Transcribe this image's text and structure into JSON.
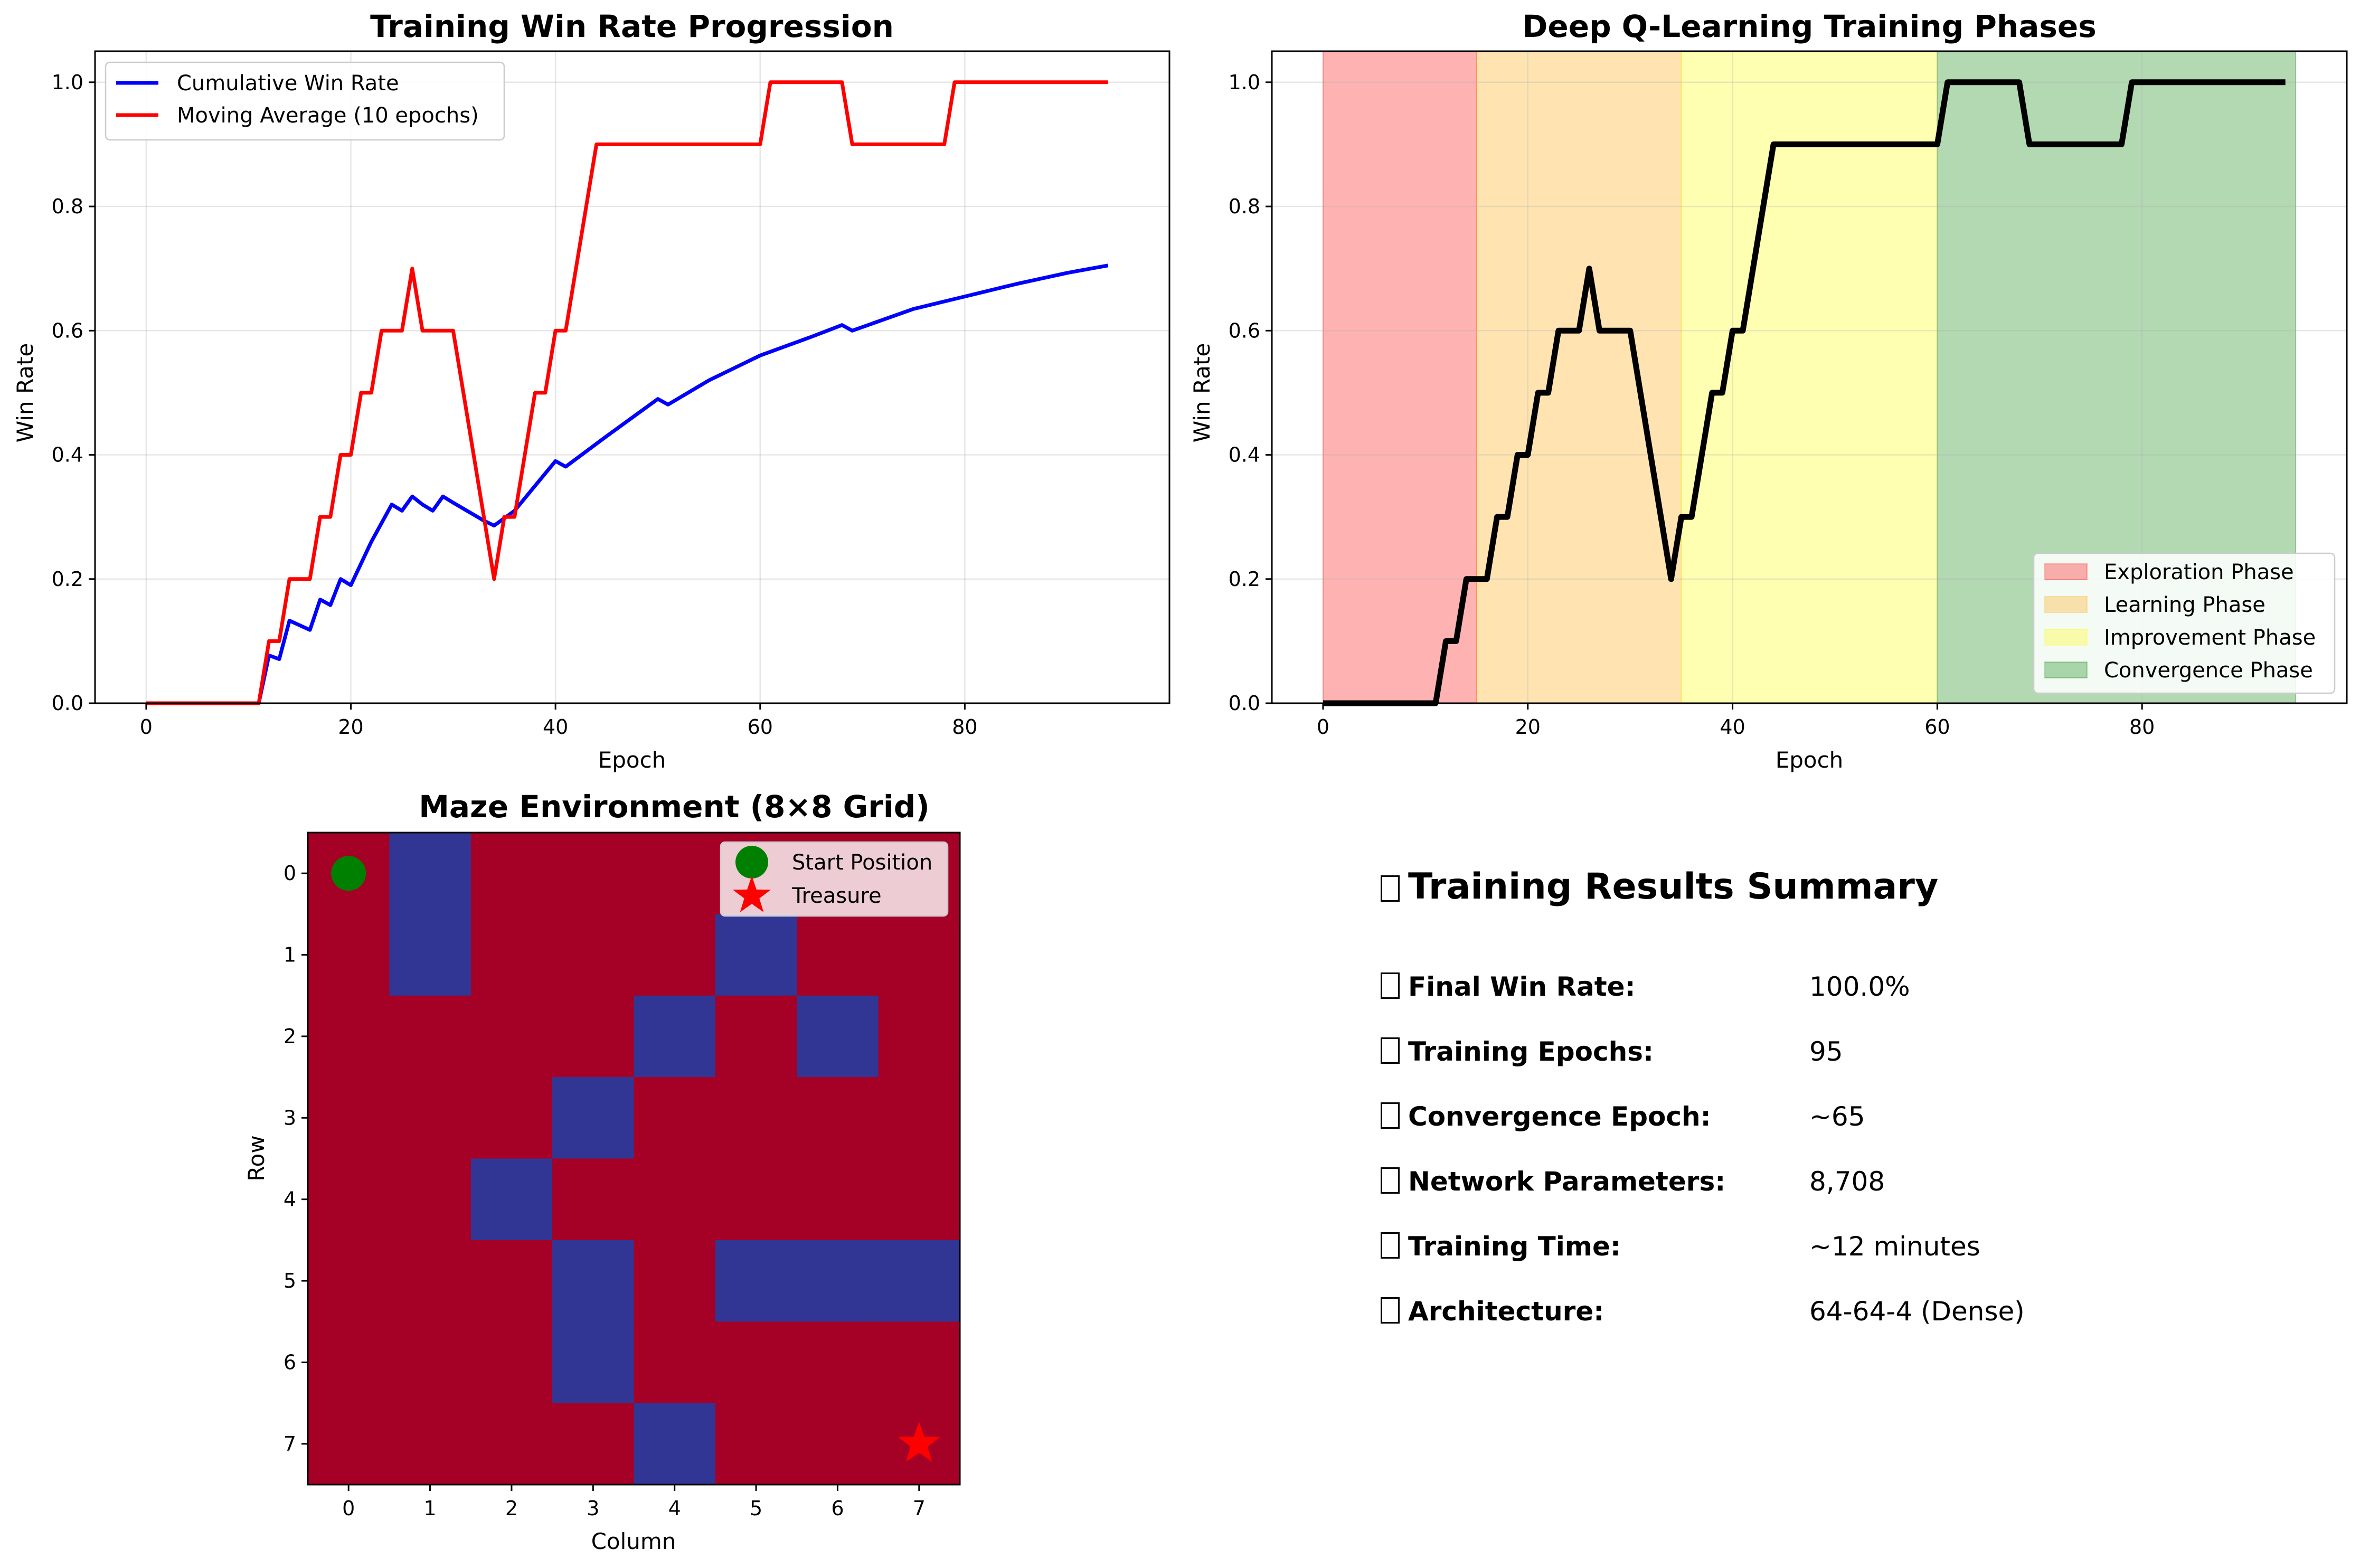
{
  "chart_data": [
    {
      "type": "line",
      "title": "Training Win Rate Progression",
      "xlabel": "Epoch",
      "ylabel": "Win Rate",
      "xlim": [
        -5,
        100
      ],
      "ylim": [
        0,
        1.05
      ],
      "xticks": [
        0,
        20,
        40,
        60,
        80
      ],
      "yticks": [
        0.0,
        0.2,
        0.4,
        0.6,
        0.8,
        1.0
      ],
      "tick_labels_x": [
        "0",
        "20",
        "40",
        "60",
        "80"
      ],
      "tick_labels_y": [
        "0.0",
        "0.2",
        "0.4",
        "0.6",
        "0.8",
        "1.0"
      ],
      "grid": true,
      "legend": "upper-left",
      "series": [
        {
          "name": "Cumulative Win Rate",
          "color": "#0000ff",
          "x": [
            0,
            11,
            12,
            13,
            14,
            16,
            17,
            18,
            19,
            20,
            22,
            24,
            25,
            26,
            27,
            28,
            29,
            30,
            33,
            34,
            36,
            40,
            41,
            45,
            50,
            51,
            55,
            60,
            65,
            68,
            69,
            75,
            80,
            85,
            90,
            94
          ],
          "y": [
            0,
            0,
            0.077,
            0.071,
            0.133,
            0.118,
            0.167,
            0.158,
            0.2,
            0.19,
            0.26,
            0.32,
            0.31,
            0.333,
            0.32,
            0.31,
            0.333,
            0.323,
            0.294,
            0.286,
            0.31,
            0.39,
            0.381,
            0.43,
            0.49,
            0.481,
            0.52,
            0.56,
            0.59,
            0.609,
            0.6,
            0.635,
            0.655,
            0.675,
            0.693,
            0.705
          ]
        },
        {
          "name": "Moving Average (10 epochs)",
          "color": "#ff0000",
          "x": [
            0,
            11,
            12,
            13,
            14,
            15,
            16,
            17,
            18,
            19,
            20,
            21,
            22,
            23,
            24,
            25,
            26,
            27,
            28,
            29,
            30,
            34,
            35,
            36,
            37,
            38,
            39,
            40,
            41,
            44,
            45,
            60,
            61,
            62,
            67,
            68,
            69,
            70,
            77,
            78,
            79,
            94
          ],
          "y": [
            0,
            0,
            0.1,
            0.1,
            0.2,
            0.2,
            0.2,
            0.3,
            0.3,
            0.4,
            0.4,
            0.5,
            0.5,
            0.6,
            0.6,
            0.6,
            0.7,
            0.6,
            0.6,
            0.6,
            0.6,
            0.2,
            0.3,
            0.3,
            0.4,
            0.5,
            0.5,
            0.6,
            0.6,
            0.9,
            0.9,
            0.9,
            1.0,
            1.0,
            1.0,
            1.0,
            0.9,
            0.9,
            0.9,
            0.9,
            1.0,
            1.0
          ]
        }
      ]
    },
    {
      "type": "line",
      "title": "Deep Q-Learning Training Phases",
      "xlabel": "Epoch",
      "ylabel": "Win Rate",
      "xlim": [
        -5,
        100
      ],
      "ylim": [
        0,
        1.05
      ],
      "xticks": [
        0,
        20,
        40,
        60,
        80
      ],
      "yticks": [
        0.0,
        0.2,
        0.4,
        0.6,
        0.8,
        1.0
      ],
      "tick_labels_x": [
        "0",
        "20",
        "40",
        "60",
        "80"
      ],
      "tick_labels_y": [
        "0.0",
        "0.2",
        "0.4",
        "0.6",
        "0.8",
        "1.0"
      ],
      "grid": true,
      "legend": "lower-right",
      "phases": [
        {
          "name": "Exploration Phase",
          "start": 0,
          "end": 15,
          "color": "#ff0000",
          "alpha": 0.3
        },
        {
          "name": "Learning Phase",
          "start": 15,
          "end": 35,
          "color": "#ffa500",
          "alpha": 0.3
        },
        {
          "name": "Improvement Phase",
          "start": 35,
          "end": 60,
          "color": "#ffff00",
          "alpha": 0.3
        },
        {
          "name": "Convergence Phase",
          "start": 60,
          "end": 95,
          "color": "#008000",
          "alpha": 0.3
        }
      ],
      "series": [
        {
          "color": "#000000",
          "x": [
            0,
            11,
            12,
            13,
            14,
            15,
            16,
            17,
            18,
            19,
            20,
            21,
            22,
            23,
            24,
            25,
            26,
            27,
            28,
            29,
            30,
            34,
            35,
            36,
            37,
            38,
            39,
            40,
            41,
            44,
            45,
            60,
            61,
            62,
            67,
            68,
            69,
            70,
            77,
            78,
            79,
            94
          ],
          "y": [
            0,
            0,
            0.1,
            0.1,
            0.2,
            0.2,
            0.2,
            0.3,
            0.3,
            0.4,
            0.4,
            0.5,
            0.5,
            0.6,
            0.6,
            0.6,
            0.7,
            0.6,
            0.6,
            0.6,
            0.6,
            0.2,
            0.3,
            0.3,
            0.4,
            0.5,
            0.5,
            0.6,
            0.6,
            0.9,
            0.9,
            0.9,
            1.0,
            1.0,
            1.0,
            1.0,
            0.9,
            0.9,
            0.9,
            0.9,
            1.0,
            1.0
          ]
        }
      ]
    },
    {
      "type": "heatmap",
      "title": "Maze Environment (8×8 Grid)",
      "xlabel": "Column",
      "ylabel": "Row",
      "xticks": [
        "0",
        "1",
        "2",
        "3",
        "4",
        "5",
        "6",
        "7"
      ],
      "yticks": [
        "0",
        "1",
        "2",
        "3",
        "4",
        "5",
        "6",
        "7"
      ],
      "legend": "upper-right",
      "open_color": "#a50026",
      "wall_color": "#313695",
      "grid": [
        [
          0,
          1,
          0,
          0,
          0,
          0,
          0,
          0
        ],
        [
          0,
          1,
          0,
          0,
          0,
          1,
          0,
          0
        ],
        [
          0,
          0,
          0,
          0,
          1,
          0,
          1,
          0
        ],
        [
          0,
          0,
          0,
          1,
          0,
          0,
          0,
          0
        ],
        [
          0,
          0,
          1,
          0,
          0,
          0,
          0,
          0
        ],
        [
          0,
          0,
          0,
          1,
          0,
          1,
          1,
          1
        ],
        [
          0,
          0,
          0,
          1,
          0,
          0,
          0,
          0
        ],
        [
          0,
          0,
          0,
          0,
          1,
          0,
          0,
          0
        ]
      ],
      "markers": [
        {
          "name": "Start Position",
          "row": 0,
          "col": 0,
          "shape": "circle",
          "color": "#008000"
        },
        {
          "name": "Treasure",
          "row": 7,
          "col": 7,
          "shape": "star",
          "color": "#ff0000"
        }
      ]
    }
  ],
  "summary": {
    "title": "Training Results Summary",
    "rows": [
      {
        "label": "Final Win Rate:",
        "value": "100.0%"
      },
      {
        "label": "Training Epochs:",
        "value": "95"
      },
      {
        "label": "Convergence Epoch:",
        "value": "~65"
      },
      {
        "label": "Network Parameters:",
        "value": "8,708"
      },
      {
        "label": "Training Time:",
        "value": "~12 minutes"
      },
      {
        "label": "Architecture:",
        "value": "64-64-4 (Dense)"
      }
    ]
  }
}
